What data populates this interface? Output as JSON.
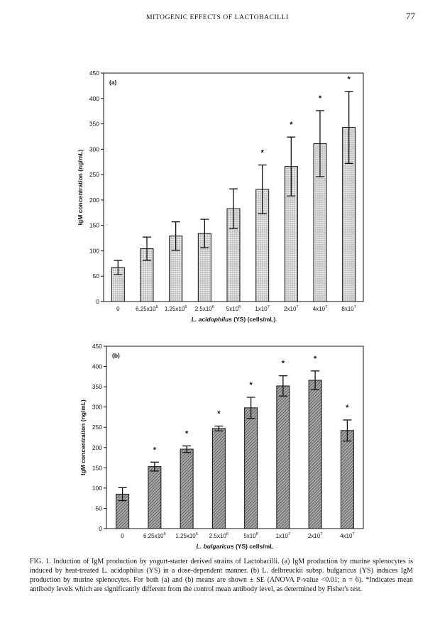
{
  "page": {
    "running_head": "MITOGENIC EFFECTS OF LACTOBACILLI",
    "page_number": "77"
  },
  "figure": {
    "caption_label": "FIG. 1.",
    "caption_text": "Induction of IgM production by yogurt-starter derived strains of Lactobacilli. (a) IgM production by murine splenocytes is induced by heat-treated L. acidophilus (YS) in a dose-dependent manner. (b) L. delbreuckii subsp. bulgaricus (YS) induces IgM production by murine splenocytes. For both (a) and (b) means are shown ± SE (ANOVA P-value <0.01; n = 6). *Indicates mean antibody levels which are significantly different from the control mean antibody level, as determined by Fisher's test."
  },
  "chart_data": [
    {
      "type": "bar",
      "panel_label": "(a)",
      "ylabel": "IgM concentration (ng/mL)",
      "xlabel": "L. acidophilus (YS)  (cells/mL)",
      "ylim": [
        0,
        450
      ],
      "yticks": [
        0,
        50,
        100,
        150,
        200,
        250,
        300,
        350,
        400,
        450
      ],
      "categories": [
        "0",
        "6.25x10^5",
        "1.25x10^6",
        "2.5x10^6",
        "5x10^6",
        "1x10^7",
        "2x10^7",
        "4x10^7",
        "8x10^7"
      ],
      "values": [
        67,
        104,
        129,
        134,
        183,
        221,
        266,
        311,
        343
      ],
      "errors": [
        14,
        23,
        28,
        28,
        39,
        48,
        58,
        65,
        71
      ],
      "significant": [
        false,
        false,
        false,
        false,
        false,
        true,
        true,
        true,
        true
      ],
      "fill": "#d6d6d6",
      "pattern": "dots"
    },
    {
      "type": "bar",
      "panel_label": "(b)",
      "ylabel": "IgM concentration (ng/mL)",
      "xlabel": "L. bulgaricus (YS)  cells/mL",
      "ylim": [
        0,
        450
      ],
      "yticks": [
        0,
        50,
        100,
        150,
        200,
        250,
        300,
        350,
        400,
        450
      ],
      "categories": [
        "0",
        "6.25x10^5",
        "1.25x10^6",
        "2.5x10^6",
        "5x10^6",
        "1x10^7",
        "2x10^7",
        "4x10^7"
      ],
      "values": [
        85,
        153,
        196,
        247,
        298,
        352,
        366,
        242
      ],
      "errors": [
        16,
        11,
        8,
        6,
        26,
        25,
        23,
        26
      ],
      "significant": [
        false,
        true,
        true,
        true,
        true,
        true,
        true,
        true
      ],
      "fill": "#8a8a8a",
      "pattern": "hatch"
    }
  ]
}
